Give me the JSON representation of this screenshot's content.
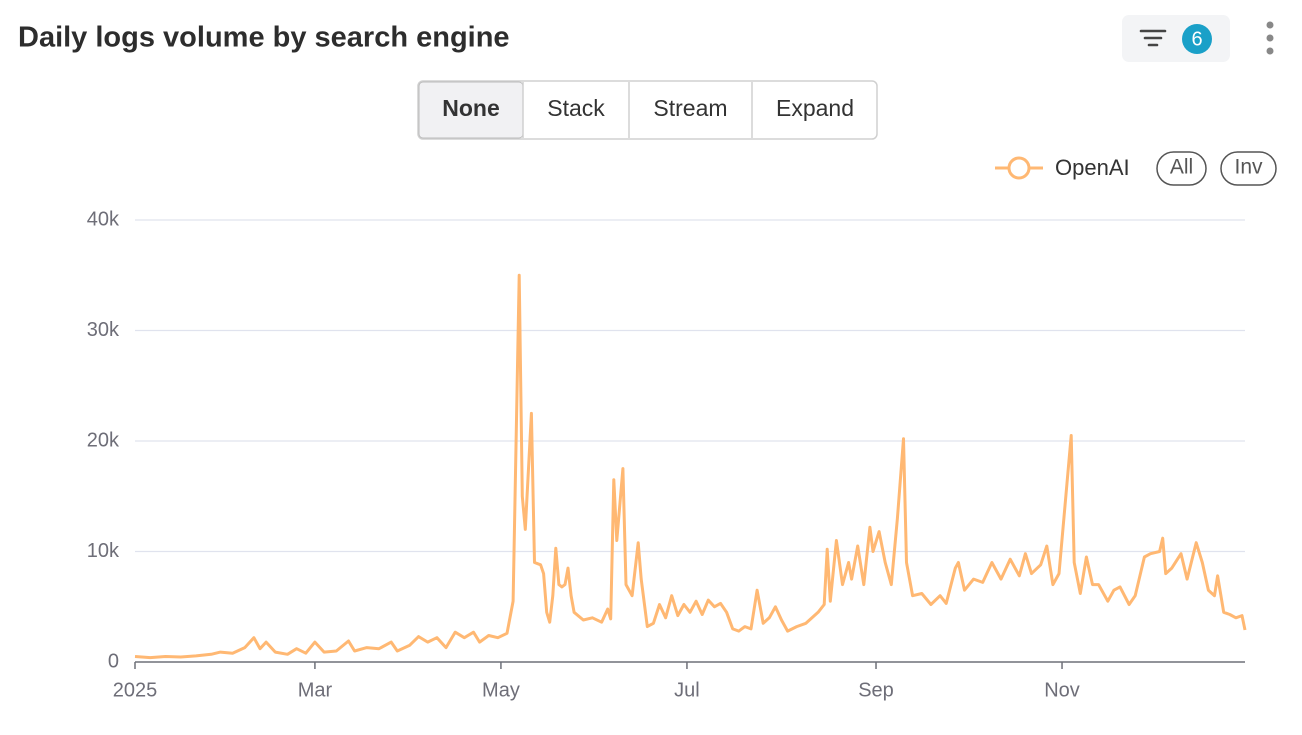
{
  "toolbar": {
    "filter_count": 6,
    "modes": [
      "None",
      "Stack",
      "Stream",
      "Expand"
    ],
    "legend_buttons": [
      "All",
      "Inv"
    ]
  },
  "chart_data": {
    "type": "line",
    "title": "Daily logs volume by search engine",
    "x": [
      0,
      5,
      10,
      15,
      20,
      25,
      28,
      32,
      36,
      39,
      41,
      43,
      46,
      50,
      53,
      56,
      59,
      62,
      66,
      70,
      72,
      76,
      80,
      84,
      86,
      90,
      93,
      96,
      99,
      102,
      105,
      108,
      111,
      113,
      116,
      119,
      122,
      124,
      126,
      127,
      128,
      130,
      131,
      133,
      134,
      135,
      136,
      137,
      138,
      139,
      140,
      141,
      142,
      143,
      144,
      147,
      150,
      153,
      155,
      156,
      157,
      158,
      160,
      161,
      163,
      165,
      166,
      168,
      170,
      172,
      174,
      176,
      178,
      180,
      182,
      184,
      186,
      188,
      190,
      192,
      194,
      196,
      198,
      200,
      202,
      204,
      206,
      208,
      210,
      212,
      214,
      217,
      220,
      222,
      224,
      226,
      227,
      228,
      230,
      232,
      234,
      235,
      237,
      239,
      241,
      242,
      244,
      246,
      248,
      250,
      252,
      253,
      255,
      258,
      261,
      264,
      266,
      269,
      270,
      272,
      275,
      278,
      281,
      284,
      287,
      290,
      292,
      294,
      297,
      299,
      301,
      303,
      307,
      308,
      310,
      312,
      314,
      316,
      319,
      321,
      323,
      326,
      328,
      331,
      333,
      336,
      337,
      338,
      340,
      343,
      345,
      348,
      350,
      352,
      354,
      355,
      357,
      359,
      361,
      363,
      364
    ],
    "series": [
      {
        "name": "OpenAI",
        "color": "#ffb873",
        "values": [
          500,
          400,
          500,
          450,
          550,
          700,
          900,
          800,
          1300,
          2200,
          1200,
          1800,
          900,
          700,
          1200,
          800,
          1800,
          900,
          1000,
          1900,
          1000,
          1300,
          1200,
          1800,
          1000,
          1500,
          2300,
          1800,
          2200,
          1300,
          2700,
          2200,
          2700,
          1800,
          2400,
          2200,
          2600,
          5500,
          35000,
          15000,
          12000,
          22500,
          9000,
          8800,
          8000,
          4500,
          3600,
          6000,
          10300,
          7000,
          6800,
          7000,
          8500,
          6000,
          4500,
          3800,
          4000,
          3600,
          4800,
          3900,
          16500,
          11000,
          17500,
          7000,
          6000,
          10800,
          7500,
          3200,
          3500,
          5200,
          4000,
          6000,
          4200,
          5200,
          4500,
          5500,
          4300,
          5600,
          5000,
          5300,
          4500,
          3000,
          2800,
          3200,
          3000,
          6500,
          3500,
          4000,
          5000,
          3800,
          2800,
          3200,
          3500,
          4000,
          4500,
          5200,
          10200,
          5500,
          11000,
          7000,
          9000,
          7500,
          10500,
          7000,
          12200,
          10000,
          11800,
          9000,
          7000,
          13000,
          20200,
          9000,
          6000,
          6200,
          5200,
          6000,
          5300,
          8500,
          9000,
          6500,
          7500,
          7200,
          9000,
          7500,
          9300,
          7800,
          9800,
          8000,
          8800,
          10500,
          7000,
          8000,
          20500,
          9000,
          6200,
          9500,
          7000,
          7000,
          5500,
          6500,
          6800,
          5200,
          6000,
          9500,
          9800,
          10000,
          11200,
          8000,
          8500,
          9800,
          7500,
          10800,
          9000,
          6500,
          6000,
          7800,
          4500,
          4300,
          4000,
          4200,
          2900
        ]
      }
    ],
    "xlim": [
      0,
      364
    ],
    "xticks": [
      {
        "value": 0,
        "label": "2025"
      },
      {
        "value": 59,
        "label": "Mar"
      },
      {
        "value": 120,
        "label": "May"
      },
      {
        "value": 181,
        "label": "Jul"
      },
      {
        "value": 243,
        "label": "Sep"
      },
      {
        "value": 304,
        "label": "Nov"
      }
    ],
    "ylim": [
      0,
      40000
    ],
    "yticks": [
      0,
      {
        "value": 10000,
        "label": "10k"
      },
      {
        "value": 20000,
        "label": "20k"
      },
      {
        "value": 30000,
        "label": "30k"
      },
      {
        "value": 40000,
        "label": "40k"
      }
    ],
    "grid": true
  }
}
